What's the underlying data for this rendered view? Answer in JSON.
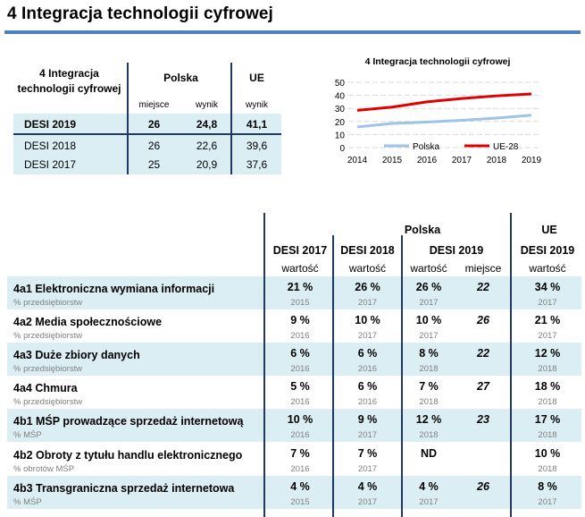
{
  "title": "4 Integracja technologii cyfrowej",
  "summary": {
    "header_dimension": "4 Integracja technologii cyfrowej",
    "header_poland": "Polska",
    "header_eu": "UE",
    "sub_rank": "miejsce",
    "sub_score": "wynik",
    "sub_eu_score": "wynik",
    "rows": [
      {
        "label": "DESI 2019",
        "rank": "26",
        "score": "24,8",
        "eu": "41,1"
      },
      {
        "label": "DESI 2018",
        "rank": "26",
        "score": "22,6",
        "eu": "39,6"
      },
      {
        "label": "DESI 2017",
        "rank": "25",
        "score": "20,9",
        "eu": "37,6"
      }
    ]
  },
  "colors": {
    "accent": "#4f81bd",
    "poland_line": "#9dc3e6",
    "eu_line": "#e00000",
    "band": "#dbeef4",
    "divider": "#1f3864"
  },
  "chart_data": {
    "type": "line",
    "title": "4 Integracja technologii cyfrowej",
    "x": [
      "2014",
      "2015",
      "2016",
      "2017",
      "2018",
      "2019"
    ],
    "series": [
      {
        "name": "Polska",
        "values": [
          15.8,
          18.5,
          19.5,
          20.9,
          22.6,
          24.8
        ]
      },
      {
        "name": "UE-28",
        "values": [
          28.5,
          31.0,
          35.0,
          37.6,
          39.6,
          41.1
        ]
      }
    ],
    "yticks": [
      "0",
      "10",
      "20",
      "30",
      "40",
      "50"
    ],
    "ylim": [
      0,
      50
    ],
    "legend": "bottom"
  },
  "indicators": {
    "group_poland": "Polska",
    "group_eu": "UE",
    "col_headers": [
      "DESI 2017",
      "DESI 2018",
      "DESI 2019",
      "DESI 2019"
    ],
    "value_label": "wartość",
    "rank_label": "miejsce",
    "rows": [
      {
        "label": "4a1 Elektroniczna wymiana informacji",
        "unit": "% przedsiębiorstw",
        "v17": "21 %",
        "y17": "2015",
        "v18": "26 %",
        "y18": "2017",
        "v19": "26 %",
        "y19": "2017",
        "rank": "22",
        "eu": "34 %",
        "yeu": "2017"
      },
      {
        "label": "4a2 Media społecznościowe",
        "unit": "% przedsiębiorstw",
        "v17": "9 %",
        "y17": "2016",
        "v18": "10 %",
        "y18": "2017",
        "v19": "10 %",
        "y19": "2017",
        "rank": "26",
        "eu": "21 %",
        "yeu": "2017"
      },
      {
        "label": "4a3 Duże zbiory danych",
        "unit": "% przedsiębiorstw",
        "v17": "6 %",
        "y17": "2016",
        "v18": "6 %",
        "y18": "2016",
        "v19": "8 %",
        "y19": "2018",
        "rank": "22",
        "eu": "12 %",
        "yeu": "2018"
      },
      {
        "label": "4a4 Chmura",
        "unit": "% przedsiębiorstw",
        "v17": "5 %",
        "y17": "2016",
        "v18": "6 %",
        "y18": "2016",
        "v19": "7 %",
        "y19": "2018",
        "rank": "27",
        "eu": "18 %",
        "yeu": "2018"
      },
      {
        "label": "4b1 MŚP prowadzące sprzedaż internetową",
        "unit": "% MŚP",
        "v17": "10 %",
        "y17": "2016",
        "v18": "9 %",
        "y18": "2017",
        "v19": "12 %",
        "y19": "2018",
        "rank": "23",
        "eu": "17 %",
        "yeu": "2018"
      },
      {
        "label": "4b2 Obroty z tytułu handlu elektronicznego",
        "unit": "% obrotów MŚP",
        "v17": "7 %",
        "y17": "2016",
        "v18": "7 %",
        "y18": "2017",
        "v19": "ND",
        "y19": "",
        "rank": "",
        "eu": "10 %",
        "yeu": "2018"
      },
      {
        "label": "4b3 Transgraniczna sprzedaż internetowa",
        "unit": "% MŚP",
        "v17": "4 %",
        "y17": "2015",
        "v18": "4 %",
        "y18": "2017",
        "v19": "4 %",
        "y19": "2017",
        "rank": "26",
        "eu": "8 %",
        "yeu": "2017"
      }
    ]
  }
}
